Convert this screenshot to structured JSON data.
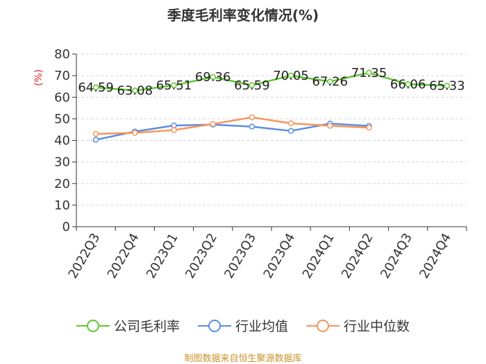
{
  "title": "季度毛利率变化情况(%)",
  "source_note": "制图数据来自恒生聚源数据库",
  "chart_data": {
    "type": "line",
    "title": "季度毛利率变化情况(%)",
    "ylabel": "(%)",
    "xlabel": "",
    "ylim": [
      0,
      80
    ],
    "yticks": [
      0,
      10,
      20,
      30,
      40,
      50,
      60,
      70,
      80
    ],
    "grid": true,
    "legend_position": "bottom",
    "categories": [
      "2022Q3",
      "2022Q4",
      "2023Q1",
      "2023Q2",
      "2023Q3",
      "2023Q4",
      "2024Q1",
      "2024Q2",
      "2024Q3",
      "2024Q4"
    ],
    "series": [
      {
        "name": "公司毛利率",
        "color": "#5fc732",
        "show_labels": true,
        "values": [
          64.59,
          63.08,
          65.51,
          69.36,
          65.59,
          70.05,
          67.26,
          71.35,
          66.06,
          65.33
        ]
      },
      {
        "name": "行业均值",
        "color": "#5b8de3",
        "show_labels": false,
        "values": [
          40.3,
          44.1,
          46.9,
          47.3,
          46.4,
          44.4,
          47.8,
          46.7,
          null,
          null
        ]
      },
      {
        "name": "行业中位数",
        "color": "#f5955b",
        "show_labels": false,
        "values": [
          43.0,
          43.5,
          44.8,
          47.6,
          50.7,
          47.9,
          46.8,
          45.9,
          null,
          null
        ]
      }
    ]
  }
}
